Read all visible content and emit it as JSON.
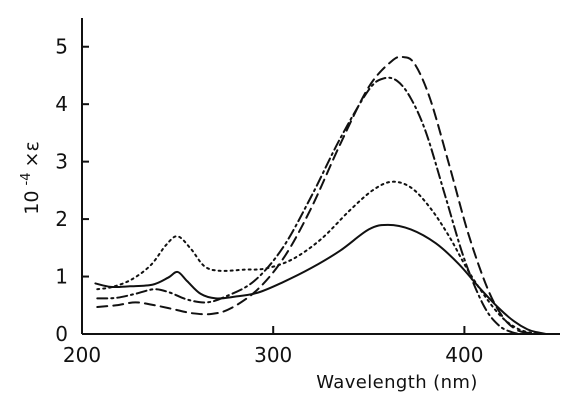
{
  "chart_data": {
    "type": "line",
    "title": "",
    "subtitle": "",
    "xlabel": "Wavelength (nm)",
    "ylabel": "10⁻⁴ × ε",
    "ylabel_parts": {
      "base": "10",
      "sup": "-4",
      "tail": "×ε"
    },
    "xlim": [
      200,
      450
    ],
    "ylim": [
      0,
      5.5
    ],
    "x_ticks": [
      200,
      300,
      400
    ],
    "y_ticks": [
      0,
      1,
      2,
      3,
      4,
      5
    ],
    "grid": false,
    "legend": "none",
    "series": [
      {
        "style": "solid",
        "x": [
          207,
          215,
          225,
          237,
          245,
          250,
          255,
          262,
          270,
          280,
          292,
          305,
          320,
          335,
          350,
          360,
          372,
          385,
          397,
          408,
          418,
          426,
          433,
          438,
          443
        ],
        "y": [
          0.88,
          0.82,
          0.83,
          0.86,
          0.98,
          1.08,
          0.92,
          0.7,
          0.62,
          0.65,
          0.72,
          0.9,
          1.15,
          1.45,
          1.82,
          1.9,
          1.82,
          1.58,
          1.22,
          0.8,
          0.45,
          0.22,
          0.08,
          0.03,
          0.0
        ]
      },
      {
        "style": "dotted",
        "x": [
          208,
          216,
          226,
          236,
          244,
          250,
          257,
          264,
          272,
          285,
          296,
          310,
          325,
          340,
          352,
          362,
          372,
          382,
          392,
          402,
          412,
          420,
          428,
          435,
          441
        ],
        "y": [
          0.78,
          0.82,
          0.95,
          1.2,
          1.55,
          1.7,
          1.48,
          1.18,
          1.1,
          1.12,
          1.14,
          1.3,
          1.65,
          2.15,
          2.5,
          2.65,
          2.55,
          2.2,
          1.7,
          1.1,
          0.6,
          0.28,
          0.09,
          0.02,
          0.0
        ]
      },
      {
        "style": "dashdot",
        "x": [
          208,
          218,
          228,
          238,
          246,
          255,
          265,
          275,
          290,
          305,
          320,
          335,
          350,
          358,
          365,
          372,
          380,
          390,
          400,
          410,
          418,
          425,
          430
        ],
        "y": [
          0.62,
          0.63,
          0.7,
          0.78,
          0.72,
          0.6,
          0.55,
          0.65,
          0.92,
          1.5,
          2.4,
          3.4,
          4.25,
          4.45,
          4.4,
          4.1,
          3.5,
          2.4,
          1.3,
          0.5,
          0.15,
          0.03,
          0.0
        ]
      },
      {
        "style": "dashed",
        "x": [
          208,
          218,
          228,
          238,
          248,
          258,
          268,
          278,
          292,
          306,
          320,
          335,
          350,
          362,
          368,
          374,
          382,
          392,
          402,
          412,
          420,
          427,
          433,
          438
        ],
        "y": [
          0.47,
          0.5,
          0.55,
          0.5,
          0.43,
          0.36,
          0.35,
          0.45,
          0.78,
          1.35,
          2.2,
          3.3,
          4.3,
          4.75,
          4.82,
          4.7,
          4.1,
          2.95,
          1.75,
          0.8,
          0.3,
          0.08,
          0.02,
          0.0
        ]
      }
    ]
  }
}
